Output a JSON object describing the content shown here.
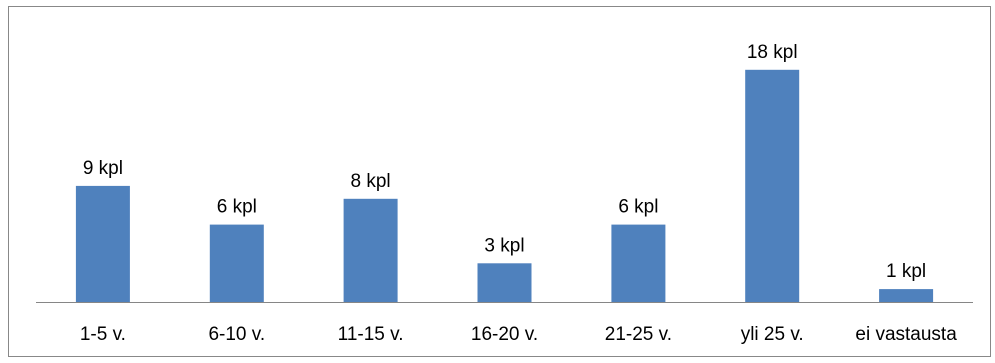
{
  "chart_data": {
    "type": "bar",
    "categories": [
      "1-5 v.",
      "6-10 v.",
      "11-15 v.",
      "16-20 v.",
      "21-25 v.",
      "yli 25 v.",
      "ei vastausta"
    ],
    "values": [
      9,
      6,
      8,
      3,
      6,
      18,
      1
    ],
    "data_labels": [
      "9 kpl",
      "6 kpl",
      "8 kpl",
      "3 kpl",
      "6 kpl",
      "18 kpl",
      "1 kpl"
    ],
    "title": "",
    "xlabel": "",
    "ylabel": "",
    "ylim": [
      0,
      20
    ],
    "grid": false,
    "legend": "none",
    "bar_color": "#4f81bd",
    "axis_color": "#868686"
  }
}
